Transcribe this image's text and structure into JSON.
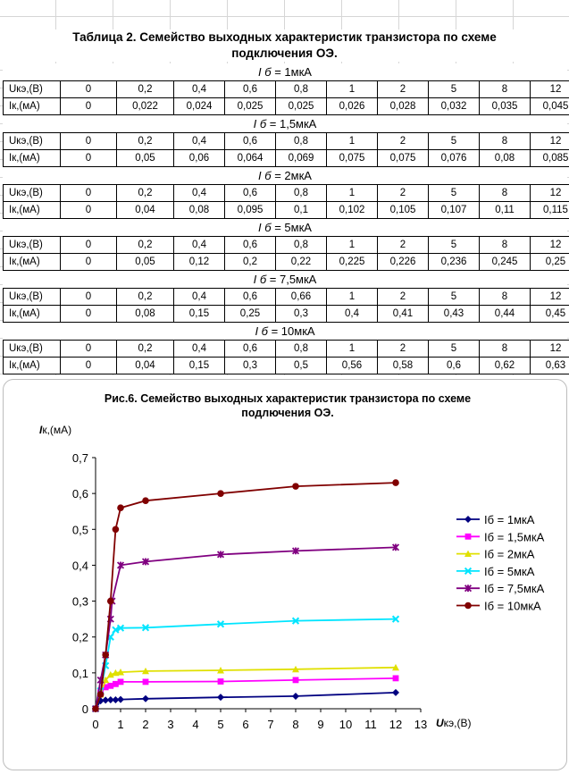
{
  "sheet": {
    "title_line1": "Таблица 2. Семейство выходных характеристик транзистора по схеме",
    "title_line2": "подключения ОЭ."
  },
  "tables": [
    {
      "title_sym": "I б",
      "title_val": " = 1мкА",
      "u_label": "Uкэ,(В)",
      "i_label": "Iк,(мА)",
      "u": [
        "0",
        "0,2",
        "0,4",
        "0,6",
        "0,8",
        "1",
        "2",
        "5",
        "8",
        "12"
      ],
      "i": [
        "0",
        "0,022",
        "0,024",
        "0,025",
        "0,025",
        "0,026",
        "0,028",
        "0,032",
        "0,035",
        "0,045"
      ]
    },
    {
      "title_sym": "I б",
      "title_val": " = 1,5мкА",
      "u_label": "Uкэ,(В)",
      "i_label": "Iк,(мА)",
      "u": [
        "0",
        "0,2",
        "0,4",
        "0,6",
        "0,8",
        "1",
        "2",
        "5",
        "8",
        "12"
      ],
      "i": [
        "0",
        "0,05",
        "0,06",
        "0,064",
        "0,069",
        "0,075",
        "0,075",
        "0,076",
        "0,08",
        "0,085"
      ]
    },
    {
      "title_sym": "I б",
      "title_val": " = 2мкА",
      "u_label": "Uкэ,(В)",
      "i_label": "Iк,(мА)",
      "u": [
        "0",
        "0,2",
        "0,4",
        "0,6",
        "0,8",
        "1",
        "2",
        "5",
        "8",
        "12"
      ],
      "i": [
        "0",
        "0,04",
        "0,08",
        "0,095",
        "0,1",
        "0,102",
        "0,105",
        "0,107",
        "0,11",
        "0,115"
      ]
    },
    {
      "title_sym": "I б",
      "title_val": " = 5мкА",
      "u_label": "Uкэ,(В)",
      "i_label": "Iк,(мА)",
      "u": [
        "0",
        "0,2",
        "0,4",
        "0,6",
        "0,8",
        "1",
        "2",
        "5",
        "8",
        "12"
      ],
      "i": [
        "0",
        "0,05",
        "0,12",
        "0,2",
        "0,22",
        "0,225",
        "0,226",
        "0,236",
        "0,245",
        "0,25"
      ]
    },
    {
      "title_sym": "I б",
      "title_val": " = 7,5мкА",
      "u_label": "Uкэ,(В)",
      "i_label": "Iк,(мА)",
      "u": [
        "0",
        "0,2",
        "0,4",
        "0,6",
        "0,66",
        "1",
        "2",
        "5",
        "8",
        "12"
      ],
      "i": [
        "0",
        "0,08",
        "0,15",
        "0,25",
        "0,3",
        "0,4",
        "0,41",
        "0,43",
        "0,44",
        "0,45"
      ]
    },
    {
      "title_sym": "I б",
      "title_val": " = 10мкА",
      "u_label": "Uкэ,(В)",
      "i_label": "Iк,(мА)",
      "u": [
        "0",
        "0,2",
        "0,4",
        "0,6",
        "0,8",
        "1",
        "2",
        "5",
        "8",
        "12"
      ],
      "i": [
        "0",
        "0,04",
        "0,15",
        "0,3",
        "0,5",
        "0,56",
        "0,58",
        "0,6",
        "0,62",
        "0,63"
      ]
    }
  ],
  "chart_data": {
    "type": "line",
    "title_line1": "Рис.6. Семейство выходных характеристик транзистора по схеме",
    "title_line2": "подлючения ОЭ.",
    "ylabel_sym": "I",
    "ylabel": "к,(мА)",
    "xlabel_sym": "U",
    "xlabel": "кэ,(В)",
    "xlim": [
      0,
      13
    ],
    "ylim": [
      0,
      0.7
    ],
    "x_ticks": [
      "0",
      "1",
      "2",
      "3",
      "4",
      "5",
      "6",
      "7",
      "8",
      "9",
      "10",
      "11",
      "12",
      "13"
    ],
    "y_ticks": [
      "0",
      "0,1",
      "0,2",
      "0,3",
      "0,4",
      "0,5",
      "0,6",
      "0,7"
    ],
    "grid": false,
    "legend_position": "right",
    "series": [
      {
        "name": "Iб = 1мкА",
        "color": "#000080",
        "marker": "diamond",
        "x": [
          0,
          0.2,
          0.4,
          0.6,
          0.8,
          1,
          2,
          5,
          8,
          12
        ],
        "y": [
          0,
          0.022,
          0.024,
          0.025,
          0.025,
          0.026,
          0.028,
          0.032,
          0.035,
          0.045
        ]
      },
      {
        "name": "Iб = 1,5мкА",
        "color": "#ff00ff",
        "marker": "square",
        "x": [
          0,
          0.2,
          0.4,
          0.6,
          0.8,
          1,
          2,
          5,
          8,
          12
        ],
        "y": [
          0,
          0.05,
          0.06,
          0.064,
          0.069,
          0.075,
          0.075,
          0.076,
          0.08,
          0.085
        ]
      },
      {
        "name": "Iб = 2мкА",
        "color": "#e0e000",
        "marker": "triangle",
        "x": [
          0,
          0.2,
          0.4,
          0.6,
          0.8,
          1,
          2,
          5,
          8,
          12
        ],
        "y": [
          0,
          0.04,
          0.08,
          0.095,
          0.1,
          0.102,
          0.105,
          0.107,
          0.11,
          0.115
        ]
      },
      {
        "name": "Iб = 5мкА",
        "color": "#00e5ff",
        "marker": "x",
        "x": [
          0,
          0.2,
          0.4,
          0.6,
          0.8,
          1,
          2,
          5,
          8,
          12
        ],
        "y": [
          0,
          0.05,
          0.12,
          0.2,
          0.22,
          0.225,
          0.226,
          0.236,
          0.245,
          0.25
        ]
      },
      {
        "name": "Iб = 7,5мкА",
        "color": "#800080",
        "marker": "star",
        "x": [
          0,
          0.2,
          0.4,
          0.6,
          0.66,
          1,
          2,
          5,
          8,
          12
        ],
        "y": [
          0,
          0.08,
          0.15,
          0.25,
          0.3,
          0.4,
          0.41,
          0.43,
          0.44,
          0.45
        ]
      },
      {
        "name": "Iб = 10мкА",
        "color": "#800000",
        "marker": "circle",
        "x": [
          0,
          0.2,
          0.4,
          0.6,
          0.8,
          1,
          2,
          5,
          8,
          12
        ],
        "y": [
          0,
          0.04,
          0.15,
          0.3,
          0.5,
          0.56,
          0.58,
          0.6,
          0.62,
          0.63
        ]
      }
    ]
  }
}
